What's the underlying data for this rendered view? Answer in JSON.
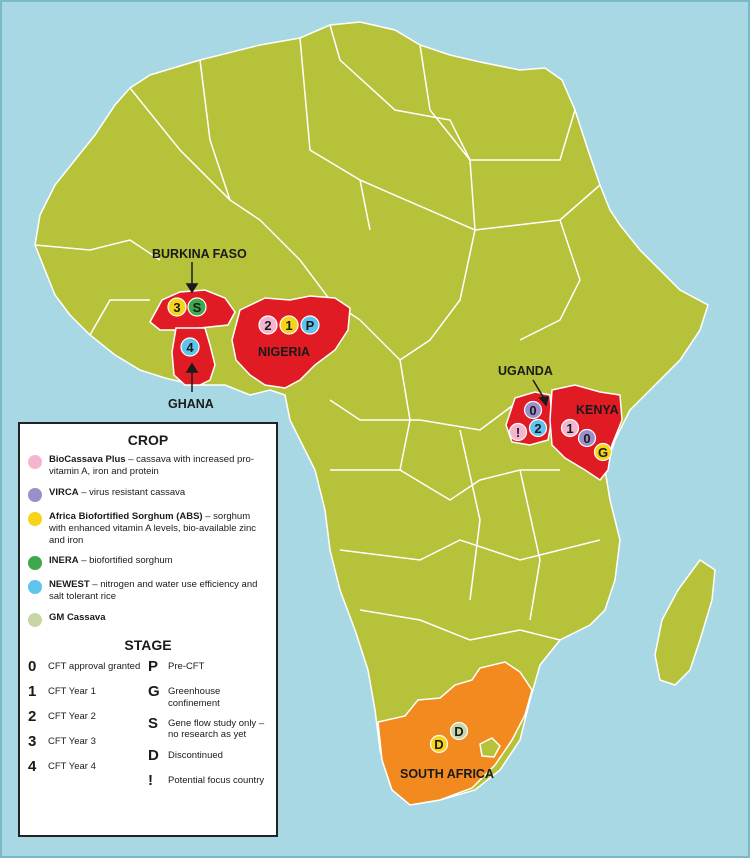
{
  "map": {
    "colors": {
      "ocean": "#a8d8e4",
      "land": "#b6c23a",
      "highlight": "#e01b24",
      "south_africa": "#f28a20",
      "border": "#ffffff"
    },
    "countries": {
      "burkina_faso": "BURKINA FASO",
      "ghana": "GHANA",
      "nigeria": "NIGERIA",
      "uganda": "UGANDA",
      "kenya": "KENYA",
      "south_africa": "SOUTH AFRICA"
    },
    "markers": {
      "burkina_faso": [
        {
          "code": "3",
          "color": "#f7d417"
        },
        {
          "code": "S",
          "color": "#3ea84a"
        }
      ],
      "ghana": [
        {
          "code": "4",
          "color": "#5ec4ee"
        }
      ],
      "nigeria": [
        {
          "code": "2",
          "color": "#f5b4cf"
        },
        {
          "code": "1",
          "color": "#f7d417"
        },
        {
          "code": "P",
          "color": "#5ec4ee"
        }
      ],
      "uganda": [
        {
          "code": "0",
          "color": "#9b8ec9"
        },
        {
          "code": "!",
          "color": "#f5b4cf"
        },
        {
          "code": "2",
          "color": "#5ec4ee"
        }
      ],
      "kenya": [
        {
          "code": "1",
          "color": "#f5b4cf"
        },
        {
          "code": "0",
          "color": "#9b8ec9"
        },
        {
          "code": "G",
          "color": "#f7d417"
        }
      ],
      "south_africa": [
        {
          "code": "D",
          "color": "#c8d6a6"
        },
        {
          "code": "D",
          "color": "#f7d417"
        }
      ]
    }
  },
  "legend": {
    "crop_heading": "CROP",
    "crops": [
      {
        "name": "BioCassava Plus",
        "desc": " – cassava with increased pro-vitamin A, iron and protein",
        "color": "#f5b4cf"
      },
      {
        "name": "VIRCA",
        "desc": " – virus resistant cassava",
        "color": "#9b8ec9"
      },
      {
        "name": "Africa Biofortified Sorghum (ABS)",
        "desc": " – sorghum with enhanced vitamin A levels, bio-available zinc and iron",
        "color": "#f7d417"
      },
      {
        "name": "INERA",
        "desc": " – biofortified sorghum",
        "color": "#3ea84a"
      },
      {
        "name": "NEWEST",
        "desc": " – nitrogen and water use efficiency and salt tolerant rice",
        "color": "#5ec4ee"
      },
      {
        "name": "GM Cassava",
        "desc": "",
        "color": "#c8d6a6"
      }
    ],
    "stage_heading": "STAGE",
    "stages_left": [
      {
        "code": "0",
        "desc": "CFT approval granted"
      },
      {
        "code": "1",
        "desc": "CFT Year 1"
      },
      {
        "code": "2",
        "desc": "CFT Year 2"
      },
      {
        "code": "3",
        "desc": "CFT Year 3"
      },
      {
        "code": "4",
        "desc": "CFT Year 4"
      }
    ],
    "stages_right": [
      {
        "code": "P",
        "desc": "Pre-CFT"
      },
      {
        "code": "G",
        "desc": "Greenhouse confinement"
      },
      {
        "code": "S",
        "desc": "Gene flow study only – no research as yet"
      },
      {
        "code": "D",
        "desc": "Discontinued"
      },
      {
        "code": "!",
        "desc": "Potential focus country"
      }
    ]
  }
}
